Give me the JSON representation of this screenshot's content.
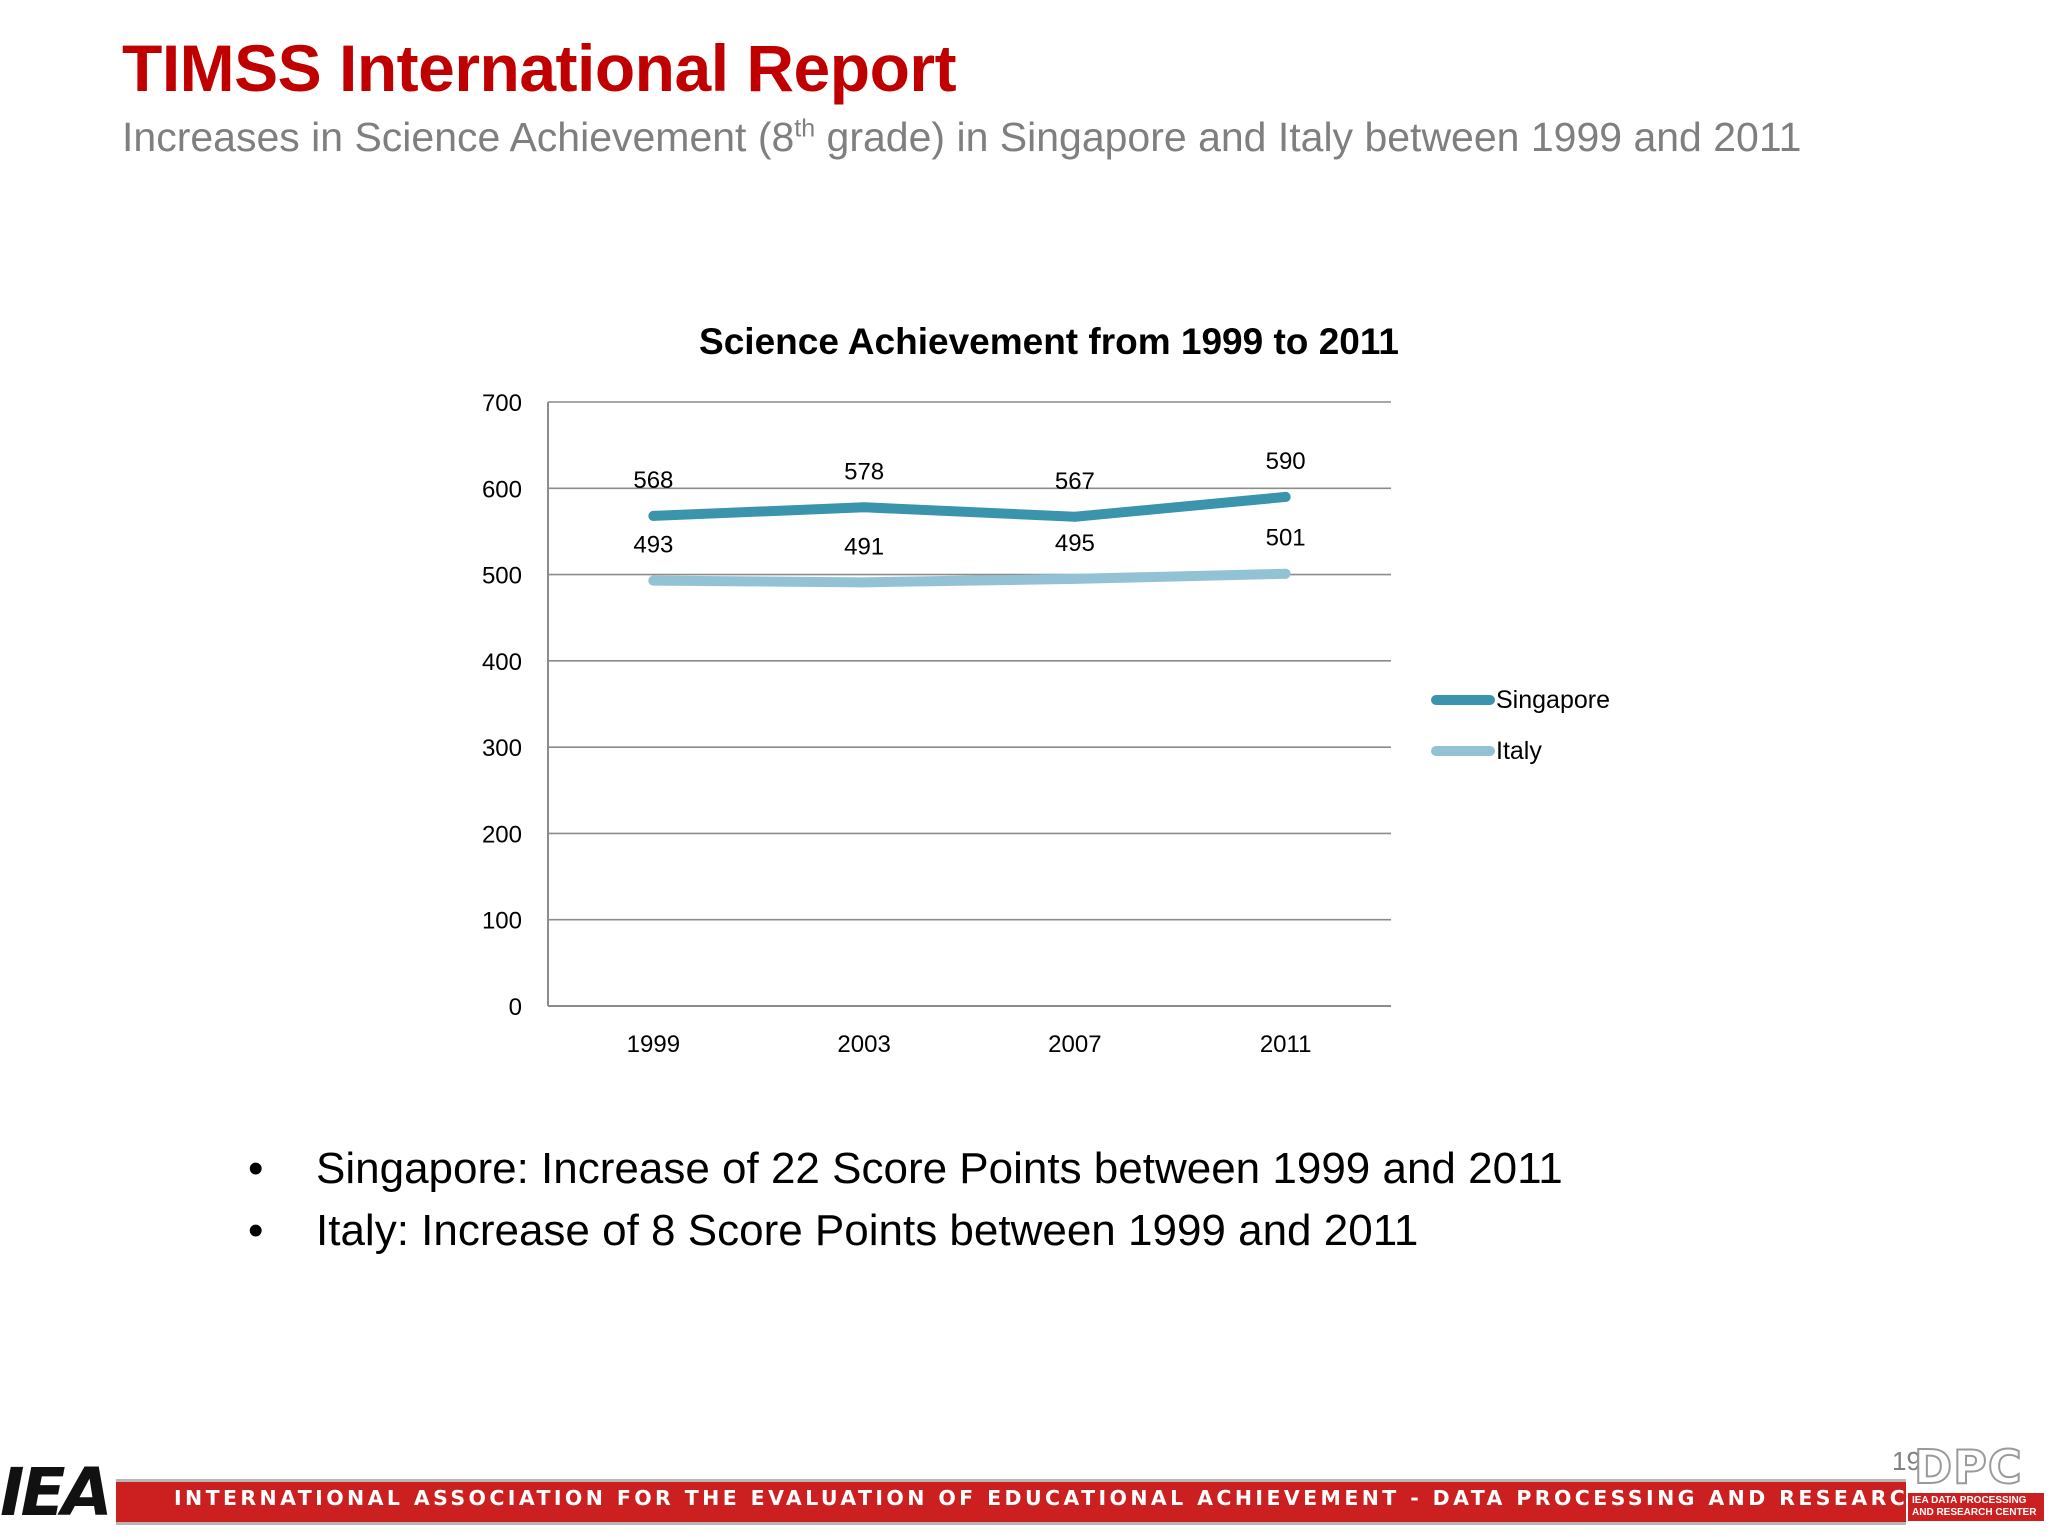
{
  "slide": {
    "title": "TIMSS International Report",
    "subtitle_pre": "Increases in Science Achievement (8",
    "subtitle_sup": "th",
    "subtitle_post": " grade) in Singapore and Italy between 1999 and 2011",
    "bullets": [
      "Singapore: Increase of 22 Score Points between 1999 and 2011",
      "Italy: Increase of 8 Score Points between 1999 and 2011"
    ],
    "bullet_glyph": "•",
    "page_number": "19"
  },
  "footer": {
    "text": "INTERNATIONAL ASSOCIATION FOR THE EVALUATION OF EDUCATIONAL ACHIEVEMENT - DATA PROCESSING AND RESEARCH CENTER",
    "logo_left": "IEA",
    "logo_right": "DPC",
    "logo_right_sub": "IEA DATA PROCESSING AND RESEARCH CENTER",
    "accent_color": "#cc1f1f"
  },
  "chart_data": {
    "type": "line",
    "title": "Science Achievement from 1999 to 2011",
    "categories": [
      "1999",
      "2003",
      "2007",
      "2011"
    ],
    "series": [
      {
        "name": "Singapore",
        "values": [
          568,
          578,
          567,
          590
        ],
        "color": "#3a94ab"
      },
      {
        "name": "Italy",
        "values": [
          493,
          491,
          495,
          501
        ],
        "color": "#92c2d3"
      }
    ],
    "ylim": [
      0,
      700
    ],
    "yticks": [
      0,
      100,
      200,
      300,
      400,
      500,
      600,
      700
    ],
    "grid": true,
    "legend": "right",
    "data_labels": true
  }
}
